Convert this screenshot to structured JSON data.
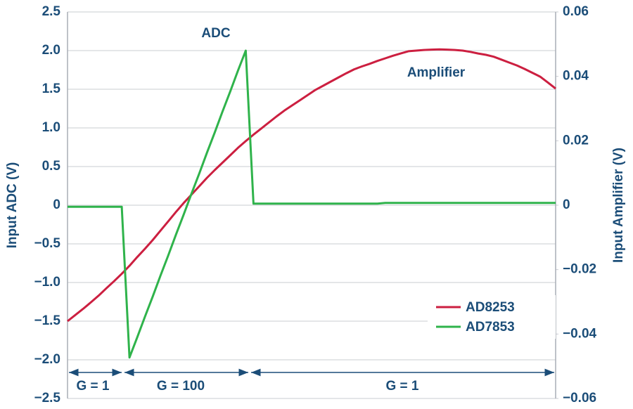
{
  "chart_data": {
    "type": "line",
    "categories": [
      null,
      null,
      null,
      null,
      null,
      null,
      null,
      null,
      null,
      null,
      null,
      null,
      null,
      null,
      null,
      null,
      null,
      null,
      null,
      null,
      null,
      null,
      null,
      null,
      null,
      null,
      null,
      null,
      null,
      null,
      null,
      null,
      null,
      null,
      null,
      null,
      null,
      null,
      null,
      null,
      null,
      null,
      null,
      null,
      null,
      null,
      null,
      null,
      null,
      null,
      null,
      null,
      null,
      null,
      null,
      null,
      null,
      null,
      null,
      null,
      null,
      null,
      null,
      null
    ],
    "ylabel": "Input ADC (V)",
    "y2label": "Input Amplifier (V)",
    "ylim": [
      -2.5,
      2.5
    ],
    "yticks": [
      {
        "value": -2.5,
        "label": "−2.5"
      },
      {
        "value": -2,
        "label": "−2.0"
      },
      {
        "value": -1.5,
        "label": "−1.5"
      },
      {
        "value": -1,
        "label": "−1.0"
      },
      {
        "value": -0.5,
        "label": "−0.5"
      },
      0,
      0.5,
      {
        "value": 1,
        "label": "1.0"
      },
      1.5,
      {
        "value": 2,
        "label": "2.0"
      },
      2.5
    ],
    "y2lim": [
      -0.06,
      0.06
    ],
    "y2ticks": [
      {
        "value": -0.06,
        "label": "−0.06"
      },
      {
        "value": -0.04,
        "label": "−0.04"
      },
      {
        "value": -0.02,
        "label": "−0.02"
      },
      0,
      0.02,
      0.04,
      0.06
    ],
    "grid": true,
    "legend": "lower right",
    "series": [
      {
        "name": "AD8253",
        "color": "#cc1f40",
        "axis": "y2",
        "values": [
          -0.036,
          -0.0341,
          -0.0322,
          -0.0302,
          -0.0281,
          -0.0258,
          -0.0236,
          -0.0213,
          -0.0188,
          -0.0161,
          -0.0135,
          -0.0108,
          -0.0079,
          -0.005,
          -0.0021,
          0.0007,
          0.0033,
          0.0059,
          0.0085,
          0.0109,
          0.0132,
          0.0155,
          0.0178,
          0.0199,
          0.0219,
          0.0238,
          0.0257,
          0.0276,
          0.0294,
          0.031,
          0.0326,
          0.0342,
          0.0358,
          0.0371,
          0.0384,
          0.0397,
          0.041,
          0.0422,
          0.0431,
          0.0439,
          0.0448,
          0.0456,
          0.0464,
          0.0471,
          0.0478,
          0.048,
          0.0482,
          0.0483,
          0.0484,
          0.0483,
          0.0482,
          0.048,
          0.0476,
          0.0471,
          0.0467,
          0.0461,
          0.0452,
          0.0443,
          0.0434,
          0.0423,
          0.0411,
          0.0399,
          0.0381,
          0.0362
        ]
      },
      {
        "name": "AD7853",
        "color": "#2fb34b",
        "values": [
          -0.02,
          -0.02,
          -0.02,
          -0.02,
          -0.02,
          -0.02,
          -0.02,
          -0.02,
          -1.97,
          -1.71,
          -1.44,
          -1.18,
          -0.91,
          -0.65,
          -0.38,
          -0.12,
          0.15,
          0.41,
          0.68,
          0.94,
          1.21,
          1.47,
          1.74,
          2.0,
          0.02,
          0.02,
          0.02,
          0.02,
          0.02,
          0.02,
          0.02,
          0.02,
          0.02,
          0.02,
          0.02,
          0.02,
          0.02,
          0.02,
          0.02,
          0.02,
          0.02,
          0.03,
          0.03,
          0.03,
          0.03,
          0.03,
          0.03,
          0.03,
          0.03,
          0.03,
          0.03,
          0.03,
          0.03,
          0.03,
          0.03,
          0.03,
          0.03,
          0.03,
          0.03,
          0.03,
          0.03,
          0.03,
          0.03,
          0.03
        ]
      }
    ],
    "annotations": [
      "ADC",
      "Amplifier"
    ],
    "regions": [
      "G = 1",
      "G = 100",
      "G = 1"
    ]
  }
}
